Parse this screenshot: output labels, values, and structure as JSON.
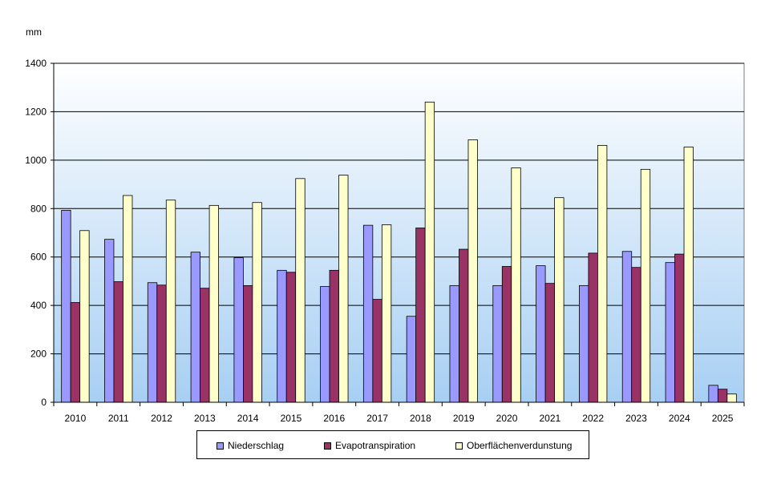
{
  "chart_data": {
    "type": "bar",
    "unit_label": "mm",
    "categories": [
      "2010",
      "2011",
      "2012",
      "2013",
      "2014",
      "2015",
      "2016",
      "2017",
      "2018",
      "2019",
      "2020",
      "2021",
      "2022",
      "2023",
      "2024",
      "2025"
    ],
    "series": [
      {
        "name": "Niederschlag",
        "color": "#9999FF",
        "values": [
          793,
          673,
          494,
          620,
          597,
          545,
          478,
          731,
          355,
          482,
          482,
          564,
          482,
          623,
          577,
          70
        ]
      },
      {
        "name": "Evapotranspiration",
        "color": "#993366",
        "values": [
          412,
          498,
          484,
          471,
          482,
          537,
          545,
          425,
          720,
          632,
          561,
          491,
          616,
          557,
          612,
          54
        ]
      },
      {
        "name": "Oberflächenverdunstung",
        "color": "#FFFFCC",
        "values": [
          709,
          854,
          835,
          813,
          825,
          924,
          938,
          733,
          1240,
          1084,
          968,
          845,
          1061,
          962,
          1054,
          34
        ]
      }
    ],
    "ylim": [
      0,
      1400
    ],
    "yticks": [
      0,
      200,
      400,
      600,
      800,
      1000,
      1200,
      1400
    ],
    "grid": true,
    "legend_position": "bottom"
  }
}
